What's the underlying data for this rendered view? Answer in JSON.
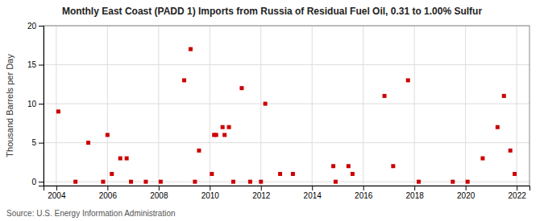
{
  "chart_data": {
    "type": "scatter",
    "title": "Monthly East Coast (PADD 1) Imports from Russia of Residual Fuel Oil, 0.31 to 1.00% Sulfur",
    "ylabel": "Thousand Barrels per Day",
    "annotations": [
      "Source: U.S. Energy Information Administration"
    ],
    "color": "#cc0000",
    "marker": "square",
    "grid": true,
    "xlim": [
      2003.5,
      2022.5
    ],
    "ylim": [
      -0.5,
      20
    ],
    "xticks": [
      2004,
      2006,
      2008,
      2010,
      2012,
      2014,
      2016,
      2018,
      2020,
      2022
    ],
    "yticks": [
      0,
      5,
      10,
      15,
      20
    ],
    "x": [
      2004.08,
      2004.75,
      2005.25,
      2005.83,
      2006.0,
      2006.17,
      2006.5,
      2006.75,
      2006.92,
      2007.5,
      2008.08,
      2009.0,
      2009.25,
      2009.42,
      2009.58,
      2010.08,
      2010.17,
      2010.25,
      2010.5,
      2010.58,
      2010.75,
      2010.92,
      2011.25,
      2011.58,
      2012.0,
      2012.17,
      2012.75,
      2013.25,
      2014.83,
      2014.92,
      2015.42,
      2015.58,
      2016.83,
      2017.17,
      2017.75,
      2018.17,
      2019.5,
      2020.08,
      2020.67,
      2021.25,
      2021.5,
      2021.75,
      2021.92
    ],
    "values": [
      9,
      0,
      5,
      0,
      6,
      1,
      3,
      3,
      0,
      0,
      0,
      13,
      17,
      0,
      4,
      1,
      6,
      6,
      7,
      6,
      7,
      0,
      12,
      0,
      0,
      10,
      1,
      1,
      2,
      0,
      2,
      1,
      11,
      2,
      13,
      0,
      0,
      0,
      3,
      7,
      11,
      4,
      1
    ]
  }
}
